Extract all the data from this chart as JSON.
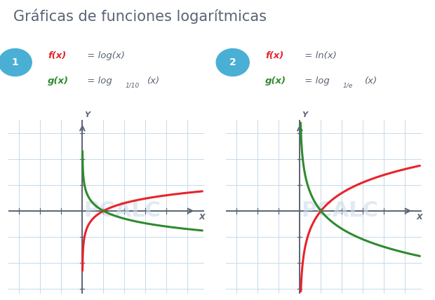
{
  "title": "Gráficas de funciones logarítmicas",
  "title_color": "#5a6475",
  "title_fontsize": 15,
  "background_color": "#ffffff",
  "panel1": {
    "label_num": "1",
    "f_color": "#e8232a",
    "g_color": "#2e8b2e",
    "axis_color": "#5a6475",
    "grid_color": "#c5daea",
    "bg_color": "#e8f2f8",
    "xlim": [
      -3.5,
      5.5
    ],
    "ylim": [
      -3.2,
      3.5
    ],
    "base_f": 10,
    "base_g": 0.1
  },
  "panel2": {
    "label_num": "2",
    "f_color": "#e8232a",
    "g_color": "#2e8b2e",
    "axis_color": "#5a6475",
    "grid_color": "#c5daea",
    "bg_color": "#e8f2f8",
    "xlim": [
      -3.5,
      5.5
    ],
    "ylim": [
      -3.2,
      3.5
    ],
    "base_f": 2.718281828,
    "base_g": 0.367879441
  },
  "circle_color": "#4aafd5",
  "label_color": "#5a6475",
  "watermark_color": "#ccdde8",
  "watermark_alpha": 0.6
}
